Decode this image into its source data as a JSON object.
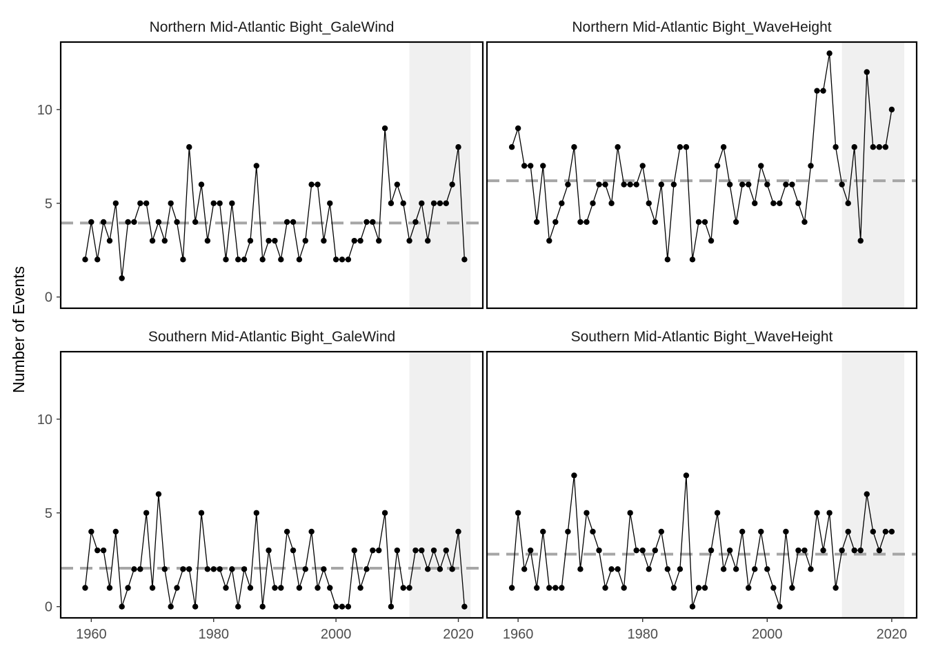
{
  "y_axis_label": "Number of Events",
  "colors": {
    "line": "#000000",
    "point": "#000000",
    "mean_line": "#a6a6a6",
    "shaded_region": "#f0f0f0",
    "panel_border": "#000000",
    "tick_label": "#4d4d4d"
  },
  "chart_data": [
    {
      "type": "line",
      "title": "Northern Mid-Atlantic Bight_GaleWind",
      "xlabel": "",
      "ylabel": "Number of Events",
      "xlim": [
        1955,
        2024
      ],
      "ylim": [
        -0.6,
        13.6
      ],
      "xticks": [
        1960,
        1980,
        2000,
        2020
      ],
      "yticks": [
        0,
        5,
        10
      ],
      "shaded_x_range": [
        2012,
        2022
      ],
      "mean": 3.95,
      "x": [
        1959,
        1960,
        1961,
        1962,
        1963,
        1964,
        1965,
        1966,
        1967,
        1968,
        1969,
        1970,
        1971,
        1972,
        1973,
        1974,
        1975,
        1976,
        1977,
        1978,
        1979,
        1980,
        1981,
        1982,
        1983,
        1984,
        1985,
        1986,
        1987,
        1988,
        1989,
        1990,
        1991,
        1992,
        1993,
        1994,
        1995,
        1996,
        1997,
        1998,
        1999,
        2000,
        2001,
        2002,
        2003,
        2004,
        2005,
        2006,
        2007,
        2008,
        2009,
        2010,
        2011,
        2012,
        2013,
        2014,
        2015,
        2016,
        2017,
        2018,
        2019,
        2020,
        2021
      ],
      "y": [
        2,
        4,
        2,
        4,
        3,
        5,
        1,
        4,
        4,
        5,
        5,
        3,
        4,
        3,
        5,
        4,
        2,
        8,
        4,
        6,
        3,
        5,
        5,
        2,
        5,
        2,
        2,
        3,
        7,
        2,
        3,
        3,
        2,
        4,
        4,
        2,
        3,
        6,
        6,
        3,
        5,
        2,
        2,
        2,
        3,
        3,
        4,
        4,
        3,
        9,
        5,
        6,
        5,
        3,
        4,
        5,
        3,
        5,
        5,
        5,
        6,
        8,
        2
      ]
    },
    {
      "type": "line",
      "title": "Northern Mid-Atlantic Bight_WaveHeight",
      "xlabel": "",
      "ylabel": "",
      "xlim": [
        1955,
        2024
      ],
      "ylim": [
        -0.6,
        13.6
      ],
      "xticks": [
        1960,
        1980,
        2000,
        2020
      ],
      "yticks": [
        0,
        5,
        10
      ],
      "shaded_x_range": [
        2012,
        2022
      ],
      "mean": 6.2,
      "x": [
        1959,
        1960,
        1961,
        1962,
        1963,
        1964,
        1965,
        1966,
        1967,
        1968,
        1969,
        1970,
        1971,
        1972,
        1973,
        1974,
        1975,
        1976,
        1977,
        1978,
        1979,
        1980,
        1981,
        1982,
        1983,
        1984,
        1985,
        1986,
        1987,
        1988,
        1989,
        1990,
        1991,
        1992,
        1993,
        1994,
        1995,
        1996,
        1997,
        1998,
        1999,
        2000,
        2001,
        2002,
        2003,
        2004,
        2005,
        2006,
        2007,
        2008,
        2009,
        2010,
        2011,
        2012,
        2013,
        2014,
        2015,
        2016,
        2017,
        2018,
        2019,
        2020
      ],
      "y": [
        8,
        9,
        7,
        7,
        4,
        7,
        3,
        4,
        5,
        6,
        8,
        4,
        4,
        5,
        6,
        6,
        5,
        8,
        6,
        6,
        6,
        7,
        5,
        4,
        6,
        2,
        6,
        8,
        8,
        2,
        4,
        4,
        3,
        7,
        8,
        6,
        4,
        6,
        6,
        5,
        7,
        6,
        5,
        5,
        6,
        6,
        5,
        4,
        7,
        11,
        11,
        13,
        8,
        6,
        5,
        8,
        3,
        12,
        8,
        8,
        8,
        10
      ]
    },
    {
      "type": "line",
      "title": "Southern Mid-Atlantic Bight_GaleWind",
      "xlabel": "",
      "ylabel": "",
      "xlim": [
        1955,
        2024
      ],
      "ylim": [
        -0.6,
        13.6
      ],
      "xticks": [
        1960,
        1980,
        2000,
        2020
      ],
      "yticks": [
        0,
        5,
        10
      ],
      "shaded_x_range": [
        2012,
        2022
      ],
      "mean": 2.05,
      "x": [
        1959,
        1960,
        1961,
        1962,
        1963,
        1964,
        1965,
        1966,
        1967,
        1968,
        1969,
        1970,
        1971,
        1972,
        1973,
        1974,
        1975,
        1976,
        1977,
        1978,
        1979,
        1980,
        1981,
        1982,
        1983,
        1984,
        1985,
        1986,
        1987,
        1988,
        1989,
        1990,
        1991,
        1992,
        1993,
        1994,
        1995,
        1996,
        1997,
        1998,
        1999,
        2000,
        2001,
        2002,
        2003,
        2004,
        2005,
        2006,
        2007,
        2008,
        2009,
        2010,
        2011,
        2012,
        2013,
        2014,
        2015,
        2016,
        2017,
        2018,
        2019,
        2020,
        2021
      ],
      "y": [
        1,
        4,
        3,
        3,
        1,
        4,
        0,
        1,
        2,
        2,
        5,
        1,
        6,
        2,
        0,
        1,
        2,
        2,
        0,
        5,
        2,
        2,
        2,
        1,
        2,
        0,
        2,
        1,
        5,
        0,
        3,
        1,
        1,
        4,
        3,
        1,
        2,
        4,
        1,
        2,
        1,
        0,
        0,
        0,
        3,
        1,
        2,
        3,
        3,
        5,
        0,
        3,
        1,
        1,
        3,
        3,
        2,
        3,
        2,
        3,
        2,
        4,
        0
      ]
    },
    {
      "type": "line",
      "title": "Southern Mid-Atlantic Bight_WaveHeight",
      "xlabel": "",
      "ylabel": "",
      "xlim": [
        1955,
        2024
      ],
      "ylim": [
        -0.6,
        13.6
      ],
      "xticks": [
        1960,
        1980,
        2000,
        2020
      ],
      "yticks": [
        0,
        5,
        10
      ],
      "shaded_x_range": [
        2012,
        2022
      ],
      "mean": 2.8,
      "x": [
        1959,
        1960,
        1961,
        1962,
        1963,
        1964,
        1965,
        1966,
        1967,
        1968,
        1969,
        1970,
        1971,
        1972,
        1973,
        1974,
        1975,
        1976,
        1977,
        1978,
        1979,
        1980,
        1981,
        1982,
        1983,
        1984,
        1985,
        1986,
        1987,
        1988,
        1989,
        1990,
        1991,
        1992,
        1993,
        1994,
        1995,
        1996,
        1997,
        1998,
        1999,
        2000,
        2001,
        2002,
        2003,
        2004,
        2005,
        2006,
        2007,
        2008,
        2009,
        2010,
        2011,
        2012,
        2013,
        2014,
        2015,
        2016,
        2017,
        2018,
        2019,
        2020
      ],
      "y": [
        1,
        5,
        2,
        3,
        1,
        4,
        1,
        1,
        1,
        4,
        7,
        2,
        5,
        4,
        3,
        1,
        2,
        2,
        1,
        5,
        3,
        3,
        2,
        3,
        4,
        2,
        1,
        2,
        7,
        0,
        1,
        1,
        3,
        5,
        2,
        3,
        2,
        4,
        1,
        2,
        4,
        2,
        1,
        0,
        4,
        1,
        3,
        3,
        2,
        5,
        3,
        5,
        1,
        3,
        4,
        3,
        3,
        6,
        4,
        3,
        4,
        4
      ]
    }
  ]
}
